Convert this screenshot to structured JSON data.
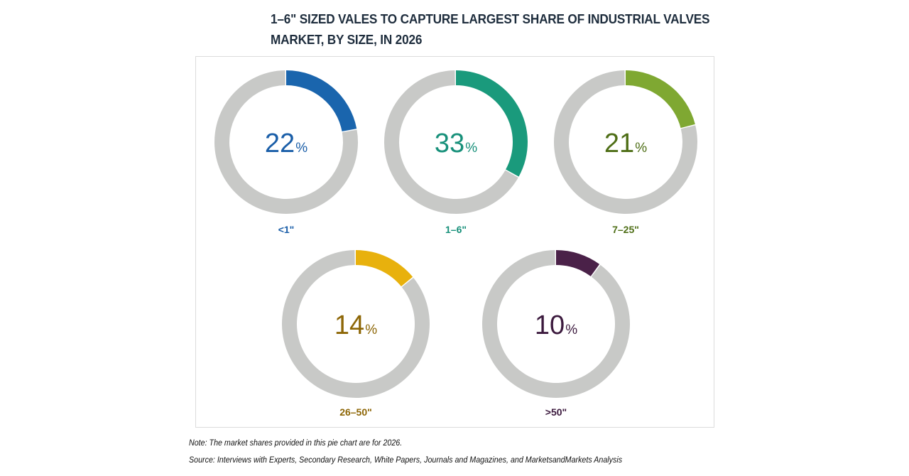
{
  "title_lines": [
    "1–6\" SIZED VALES TO CAPTURE LARGEST SHARE OF INDUSTRIAL VALVES",
    "MARKET, BY SIZE, IN 2026"
  ],
  "note": "Note: The market shares provided in this pie chart are for 2026.",
  "source": "Source: Interviews with Experts, Secondary Research, White Papers, Journals and Magazines, and MarketsandMarkets Analysis",
  "chart_data": {
    "type": "pie",
    "subtype": "donut-small-multiples",
    "title": "1–6\" SIZED VALES TO CAPTURE LARGEST SHARE OF INDUSTRIAL VALVES MARKET, BY SIZE, IN 2026",
    "unit": "%",
    "remainder_color": "#c8c9c7",
    "categories": [
      "<1\"",
      "1–6\"",
      "7–25\"",
      "26–50\"",
      ">50\""
    ],
    "values": [
      22,
      33,
      21,
      14,
      10
    ],
    "series": [
      {
        "name": "<1\"",
        "value": 22,
        "label": "22",
        "color": "#1a65ad",
        "text_color": "#1a5ea8"
      },
      {
        "name": "1–6\"",
        "value": 33,
        "label": "33",
        "color": "#1a9a7c",
        "text_color": "#17907a"
      },
      {
        "name": "7–25\"",
        "value": 21,
        "label": "21",
        "color": "#7fa832",
        "text_color": "#4e6e16"
      },
      {
        "name": "26–50\"",
        "value": 14,
        "label": "14",
        "color": "#e8b10d",
        "text_color": "#8d6606"
      },
      {
        "name": ">50\"",
        "value": 10,
        "label": "10",
        "color": "#4a2148",
        "text_color": "#3c1a3e"
      }
    ],
    "layout": "3 top row, 2 bottom row"
  }
}
